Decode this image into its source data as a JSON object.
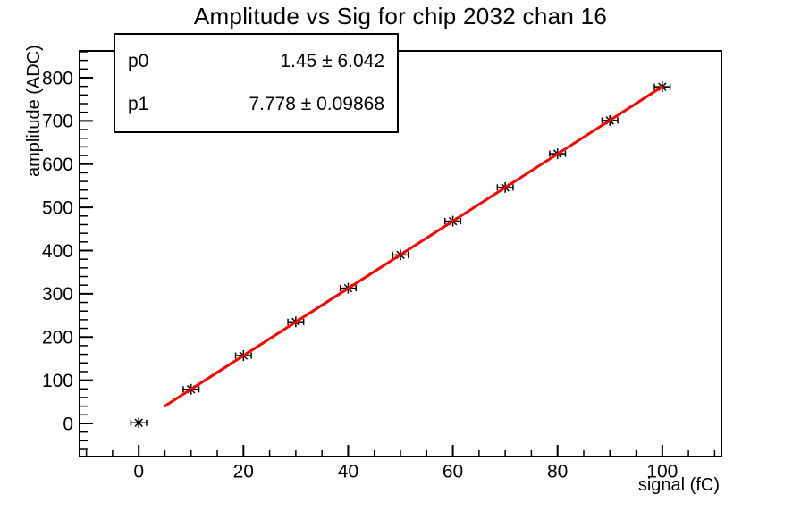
{
  "title": "Amplitude vs Sig for chip 2032 chan 16",
  "stats": {
    "rows": [
      {
        "name": "p0",
        "value": "1.45 ± 6.042"
      },
      {
        "name": "p1",
        "value": "7.778 ± 0.09868"
      }
    ]
  },
  "chart_data": {
    "type": "scatter",
    "title": "Amplitude vs Sig for chip 2032 chan 16",
    "xlabel": "signal (fC)",
    "ylabel": "amplitude (ADC)",
    "xlim": [
      -11.3,
      111.3
    ],
    "ylim": [
      -76.5,
      862
    ],
    "x": [
      0,
      10,
      20,
      30,
      40,
      50,
      60,
      70,
      80,
      90,
      100
    ],
    "y": [
      1.5,
      79,
      157,
      235,
      313,
      390,
      468,
      546,
      624,
      701,
      779
    ],
    "xerr": 1.5,
    "marker": "asterisk-with-error-bars",
    "marker_color": "#000000",
    "axis_color": "#000000",
    "background_color": "#ffffff",
    "grid": false,
    "frame": true,
    "x_major_ticks": [
      0,
      20,
      40,
      60,
      80,
      100
    ],
    "x_minor_step": 5,
    "y_major_ticks": [
      0,
      100,
      200,
      300,
      400,
      500,
      600,
      700,
      800
    ],
    "y_minor_step": 20,
    "fit": {
      "type": "linear",
      "p0": 1.45,
      "p1": 7.778,
      "x_start": 5,
      "x_end": 100,
      "color": "#ff0000"
    },
    "legend_position": "none",
    "stats_box": {
      "p0": "1.45 ± 6.042",
      "p1": "7.778 ± 0.09868"
    }
  }
}
